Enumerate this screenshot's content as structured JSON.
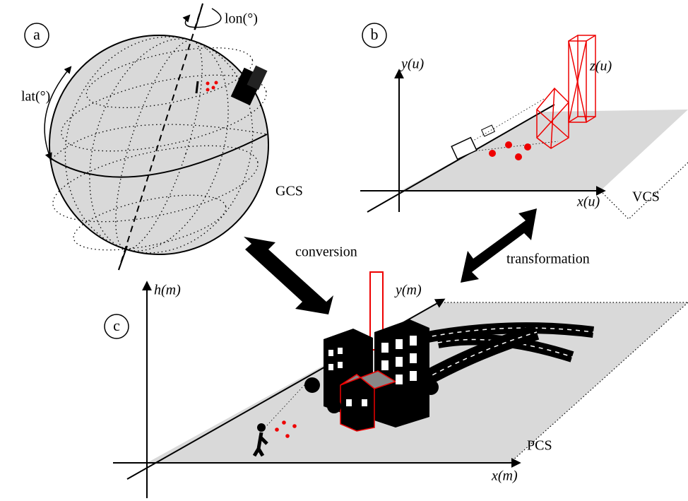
{
  "panels": [
    {
      "label": "a",
      "axes": [
        "lon(°)",
        "lat(°)"
      ],
      "system": "GCS"
    },
    {
      "label": "b",
      "axes": [
        "y(u)",
        "z(u)",
        "x(u)"
      ],
      "system": "VCS"
    },
    {
      "label": "c",
      "axes": [
        "h(m)",
        "y(m)",
        "x(m)"
      ],
      "system": "PCS"
    }
  ],
  "arrows": [
    "conversion",
    "transformation"
  ]
}
